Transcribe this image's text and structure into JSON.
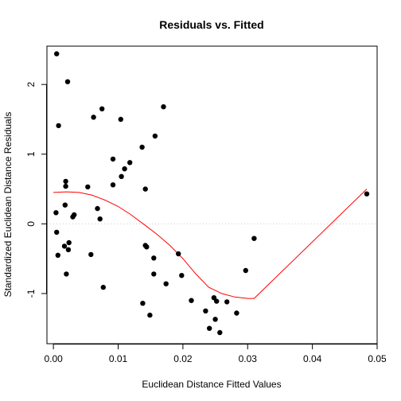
{
  "chart_data": {
    "type": "scatter",
    "title": "Residuals vs. Fitted",
    "xlabel": "Euclidean Distance Fitted Values",
    "ylabel": "Standardized Euclidean Distance Residuals",
    "xlim": [
      -0.001,
      0.05
    ],
    "ylim": [
      -1.72,
      2.55
    ],
    "xticks": [
      0.0,
      0.01,
      0.02,
      0.03,
      0.04,
      0.05
    ],
    "xtick_labels": [
      "0.00",
      "0.01",
      "0.02",
      "0.03",
      "0.04",
      "0.05"
    ],
    "yticks": [
      -1,
      0,
      1,
      2
    ],
    "ytick_labels": [
      "-1",
      "0",
      "1",
      "2"
    ],
    "grid": false,
    "reference_line": {
      "y": 0,
      "style": "dotted",
      "color": "#cccccc"
    },
    "colors": {
      "points": "#000000",
      "smooth": "#ff0000"
    },
    "points": [
      {
        "x": 0.0005,
        "y": 2.44
      },
      {
        "x": 0.0022,
        "y": 2.04
      },
      {
        "x": 0.0008,
        "y": 1.41
      },
      {
        "x": 0.0062,
        "y": 1.53
      },
      {
        "x": 0.0075,
        "y": 1.65
      },
      {
        "x": 0.0104,
        "y": 1.5
      },
      {
        "x": 0.017,
        "y": 1.68
      },
      {
        "x": 0.0157,
        "y": 1.26
      },
      {
        "x": 0.0137,
        "y": 1.1
      },
      {
        "x": 0.0092,
        "y": 0.93
      },
      {
        "x": 0.0118,
        "y": 0.88
      },
      {
        "x": 0.011,
        "y": 0.79
      },
      {
        "x": 0.0105,
        "y": 0.68
      },
      {
        "x": 0.0019,
        "y": 0.61
      },
      {
        "x": 0.0019,
        "y": 0.54
      },
      {
        "x": 0.0053,
        "y": 0.53
      },
      {
        "x": 0.0092,
        "y": 0.56
      },
      {
        "x": 0.0142,
        "y": 0.5
      },
      {
        "x": 0.0018,
        "y": 0.27
      },
      {
        "x": 0.0068,
        "y": 0.22
      },
      {
        "x": 0.0004,
        "y": 0.16
      },
      {
        "x": 0.0032,
        "y": 0.13
      },
      {
        "x": 0.003,
        "y": 0.1
      },
      {
        "x": 0.0072,
        "y": 0.07
      },
      {
        "x": 0.0005,
        "y": -0.12
      },
      {
        "x": 0.0024,
        "y": -0.27
      },
      {
        "x": 0.0017,
        "y": -0.32
      },
      {
        "x": 0.0023,
        "y": -0.37
      },
      {
        "x": 0.0007,
        "y": -0.45
      },
      {
        "x": 0.0058,
        "y": -0.44
      },
      {
        "x": 0.0142,
        "y": -0.31
      },
      {
        "x": 0.0144,
        "y": -0.33
      },
      {
        "x": 0.0155,
        "y": -0.49
      },
      {
        "x": 0.0193,
        "y": -0.43
      },
      {
        "x": 0.002,
        "y": -0.72
      },
      {
        "x": 0.0155,
        "y": -0.72
      },
      {
        "x": 0.0198,
        "y": -0.74
      },
      {
        "x": 0.0174,
        "y": -0.86
      },
      {
        "x": 0.0077,
        "y": -0.91
      },
      {
        "x": 0.0297,
        "y": -0.67
      },
      {
        "x": 0.031,
        "y": -0.21
      },
      {
        "x": 0.0213,
        "y": -1.1
      },
      {
        "x": 0.0138,
        "y": -1.14
      },
      {
        "x": 0.0248,
        "y": -1.06
      },
      {
        "x": 0.0252,
        "y": -1.11
      },
      {
        "x": 0.0268,
        "y": -1.12
      },
      {
        "x": 0.0235,
        "y": -1.25
      },
      {
        "x": 0.0283,
        "y": -1.28
      },
      {
        "x": 0.0149,
        "y": -1.31
      },
      {
        "x": 0.025,
        "y": -1.37
      },
      {
        "x": 0.0241,
        "y": -1.5
      },
      {
        "x": 0.0257,
        "y": -1.56
      },
      {
        "x": 0.0484,
        "y": 0.43
      }
    ],
    "smooth_line": [
      {
        "x": 0.0,
        "y": 0.45
      },
      {
        "x": 0.002,
        "y": 0.46
      },
      {
        "x": 0.004,
        "y": 0.45
      },
      {
        "x": 0.006,
        "y": 0.41
      },
      {
        "x": 0.008,
        "y": 0.34
      },
      {
        "x": 0.01,
        "y": 0.25
      },
      {
        "x": 0.012,
        "y": 0.13
      },
      {
        "x": 0.014,
        "y": -0.01
      },
      {
        "x": 0.016,
        "y": -0.15
      },
      {
        "x": 0.018,
        "y": -0.31
      },
      {
        "x": 0.02,
        "y": -0.5
      },
      {
        "x": 0.022,
        "y": -0.72
      },
      {
        "x": 0.024,
        "y": -0.91
      },
      {
        "x": 0.026,
        "y": -1.0
      },
      {
        "x": 0.028,
        "y": -1.05
      },
      {
        "x": 0.03,
        "y": -1.07
      },
      {
        "x": 0.031,
        "y": -1.07
      },
      {
        "x": 0.0484,
        "y": 0.5
      }
    ]
  }
}
